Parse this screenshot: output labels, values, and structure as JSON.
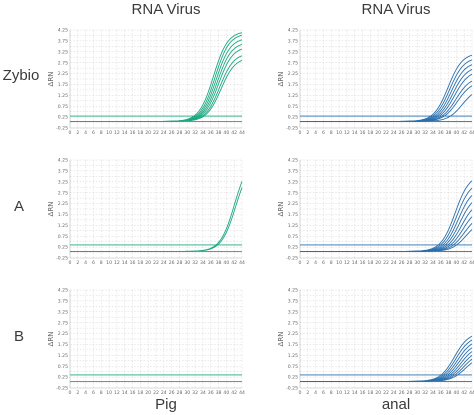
{
  "columns": [
    "RNA Virus",
    "RNA Virus"
  ],
  "rows": [
    "Zybio",
    "A",
    "B"
  ],
  "bottom_labels": [
    "Pig",
    "anal"
  ],
  "colors": {
    "pig": "#1aa880",
    "anal": "#2a6fad",
    "text": "#3a3a3a",
    "tick": "#666666"
  },
  "chart_data": [
    {
      "row": "Zybio",
      "col": "RNA Virus",
      "bottom_label": "Pig",
      "type": "line",
      "ylabel": "ΔRN",
      "x_ticks": [
        "0",
        "2",
        "4",
        "6",
        "8",
        "10",
        "12",
        "14",
        "16",
        "18",
        "20",
        "22",
        "24",
        "26",
        "28",
        "30",
        "32",
        "34",
        "36",
        "38",
        "40",
        "42",
        "44"
      ],
      "y_ticks": [
        "-0.25",
        "0.00",
        "0.25",
        "0.50",
        "0.75",
        "1.00",
        "1.25",
        "1.50",
        "1.75",
        "2.00",
        "2.25",
        "2.50",
        "2.75",
        "3.00",
        "3.25",
        "3.50",
        "3.75",
        "4.00",
        "4.25"
      ],
      "xlim": [
        0,
        44
      ],
      "ylim": [
        -0.25,
        4.25
      ],
      "grid": true,
      "thresholds": [
        0.05,
        0.3
      ],
      "series": [
        {
          "ct": 34.2,
          "plateau": 4.2,
          "k": 0.55
        },
        {
          "ct": 34.6,
          "plateau": 4.1,
          "k": 0.55
        },
        {
          "ct": 34.9,
          "plateau": 3.9,
          "k": 0.55
        },
        {
          "ct": 35.2,
          "plateau": 3.7,
          "k": 0.55
        },
        {
          "ct": 35.5,
          "plateau": 3.5,
          "k": 0.55
        },
        {
          "ct": 35.8,
          "plateau": 3.2,
          "k": 0.55
        },
        {
          "ct": 36.1,
          "plateau": 3.0,
          "k": 0.55
        }
      ]
    },
    {
      "row": "Zybio",
      "col": "RNA Virus",
      "bottom_label": "anal",
      "type": "line",
      "ylabel": "ΔRN",
      "x_ticks": [
        "0",
        "2",
        "4",
        "6",
        "8",
        "10",
        "12",
        "14",
        "16",
        "18",
        "20",
        "22",
        "24",
        "26",
        "28",
        "30",
        "32",
        "34",
        "36",
        "38",
        "40",
        "42",
        "44"
      ],
      "y_ticks": [
        "-0.25",
        "0.00",
        "0.25",
        "0.50",
        "0.75",
        "1.00",
        "1.25",
        "1.50",
        "1.75",
        "2.00",
        "2.25",
        "2.50",
        "2.75",
        "3.00",
        "3.25",
        "3.50",
        "3.75",
        "4.00",
        "4.25"
      ],
      "xlim": [
        0,
        44
      ],
      "ylim": [
        -0.25,
        4.25
      ],
      "grid": true,
      "thresholds": [
        0.05,
        0.3
      ],
      "series": [
        {
          "ct": 35.4,
          "plateau": 3.2,
          "k": 0.55
        },
        {
          "ct": 35.8,
          "plateau": 3.0,
          "k": 0.55
        },
        {
          "ct": 36.2,
          "plateau": 2.8,
          "k": 0.55
        },
        {
          "ct": 36.6,
          "plateau": 2.6,
          "k": 0.55
        },
        {
          "ct": 37.0,
          "plateau": 2.4,
          "k": 0.55
        },
        {
          "ct": 37.4,
          "plateau": 2.1,
          "k": 0.55
        },
        {
          "ct": 37.8,
          "plateau": 1.9,
          "k": 0.55
        },
        {
          "ct": 39.0,
          "plateau": 1.6,
          "k": 0.55
        }
      ]
    },
    {
      "row": "A",
      "col": "RNA Virus",
      "bottom_label": "Pig",
      "type": "line",
      "ylabel": "ΔRN",
      "x_ticks": [
        "0",
        "2",
        "4",
        "6",
        "8",
        "10",
        "12",
        "14",
        "16",
        "18",
        "20",
        "22",
        "24",
        "26",
        "28",
        "30",
        "32",
        "34",
        "36",
        "38",
        "40",
        "42",
        "44"
      ],
      "y_ticks": [
        "-0.25",
        "0.00",
        "0.25",
        "0.50",
        "0.75",
        "1.00",
        "1.25",
        "1.50",
        "1.75",
        "2.00",
        "2.25",
        "2.50",
        "2.75",
        "3.00",
        "3.25",
        "3.50",
        "3.75",
        "4.00",
        "4.25"
      ],
      "xlim": [
        0,
        44
      ],
      "ylim": [
        -0.25,
        4.25
      ],
      "grid": true,
      "thresholds": [
        0.05,
        0.35
      ],
      "series": [
        {
          "ct": 39.6,
          "plateau": 4.4,
          "k": 0.55
        },
        {
          "ct": 39.9,
          "plateau": 4.2,
          "k": 0.55
        }
      ]
    },
    {
      "row": "A",
      "col": "RNA Virus",
      "bottom_label": "anal",
      "type": "line",
      "ylabel": "ΔRN",
      "x_ticks": [
        "0",
        "2",
        "4",
        "6",
        "8",
        "10",
        "12",
        "14",
        "16",
        "18",
        "20",
        "22",
        "24",
        "26",
        "28",
        "30",
        "32",
        "34",
        "36",
        "38",
        "40",
        "42",
        "44"
      ],
      "y_ticks": [
        "-0.25",
        "0.00",
        "0.25",
        "0.50",
        "0.75",
        "1.00",
        "1.25",
        "1.50",
        "1.75",
        "2.00",
        "2.25",
        "2.50",
        "2.75",
        "3.00",
        "3.25",
        "3.50",
        "3.75",
        "4.00",
        "4.25"
      ],
      "xlim": [
        0,
        44
      ],
      "ylim": [
        -0.25,
        4.25
      ],
      "grid": true,
      "thresholds": [
        0.05,
        0.35
      ],
      "series": [
        {
          "ct": 37.2,
          "plateau": 3.6,
          "k": 0.55
        },
        {
          "ct": 37.6,
          "plateau": 3.3,
          "k": 0.55
        },
        {
          "ct": 38.0,
          "plateau": 3.0,
          "k": 0.55
        },
        {
          "ct": 38.4,
          "plateau": 2.7,
          "k": 0.55
        },
        {
          "ct": 38.8,
          "plateau": 2.4,
          "k": 0.55
        },
        {
          "ct": 39.2,
          "plateau": 2.1,
          "k": 0.55
        },
        {
          "ct": 39.6,
          "plateau": 1.8,
          "k": 0.55
        },
        {
          "ct": 40.0,
          "plateau": 1.5,
          "k": 0.55
        }
      ]
    },
    {
      "row": "B",
      "col": "RNA Virus",
      "bottom_label": "Pig",
      "type": "line",
      "ylabel": "ΔRN",
      "x_ticks": [
        "0",
        "2",
        "4",
        "6",
        "8",
        "10",
        "12",
        "14",
        "16",
        "18",
        "20",
        "22",
        "24",
        "26",
        "28",
        "30",
        "32",
        "34",
        "36",
        "38",
        "40",
        "42",
        "44"
      ],
      "y_ticks": [
        "-0.25",
        "0.00",
        "0.25",
        "0.50",
        "0.75",
        "1.00",
        "1.25",
        "1.50",
        "1.75",
        "2.00",
        "2.25",
        "2.50",
        "2.75",
        "3.00",
        "3.25",
        "3.50",
        "3.75",
        "4.00",
        "4.25"
      ],
      "xlim": [
        0,
        44
      ],
      "ylim": [
        -0.25,
        4.25
      ],
      "grid": true,
      "thresholds": [
        0.05,
        0.35
      ],
      "series": []
    },
    {
      "row": "B",
      "col": "RNA Virus",
      "bottom_label": "anal",
      "type": "line",
      "ylabel": "ΔRN",
      "x_ticks": [
        "0",
        "2",
        "4",
        "6",
        "8",
        "10",
        "12",
        "14",
        "16",
        "18",
        "20",
        "22",
        "24",
        "26",
        "28",
        "30",
        "32",
        "34",
        "36",
        "38",
        "40",
        "42",
        "44"
      ],
      "y_ticks": [
        "-0.25",
        "0.00",
        "0.25",
        "0.50",
        "0.75",
        "1.00",
        "1.25",
        "1.50",
        "1.75",
        "2.00",
        "2.25",
        "2.50",
        "2.75",
        "3.00",
        "3.25",
        "3.50",
        "3.75",
        "4.00",
        "4.25"
      ],
      "xlim": [
        0,
        44
      ],
      "ylim": [
        -0.25,
        4.25
      ],
      "grid": true,
      "thresholds": [
        0.05,
        0.35
      ],
      "series": [
        {
          "ct": 37.0,
          "plateau": 2.3,
          "k": 0.55
        },
        {
          "ct": 37.4,
          "plateau": 2.15,
          "k": 0.55
        },
        {
          "ct": 37.8,
          "plateau": 2.0,
          "k": 0.55
        },
        {
          "ct": 38.2,
          "plateau": 1.85,
          "k": 0.55
        },
        {
          "ct": 38.6,
          "plateau": 1.7,
          "k": 0.55
        },
        {
          "ct": 39.0,
          "plateau": 1.55,
          "k": 0.55
        },
        {
          "ct": 39.4,
          "plateau": 1.4,
          "k": 0.55
        },
        {
          "ct": 39.8,
          "plateau": 1.25,
          "k": 0.55
        }
      ]
    }
  ]
}
